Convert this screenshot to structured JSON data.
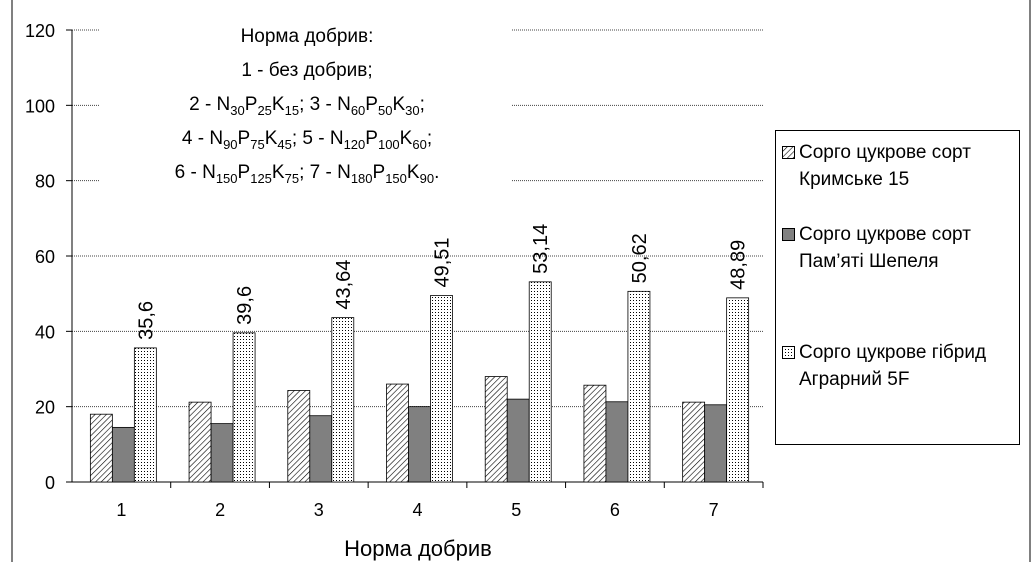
{
  "chart_data": {
    "type": "bar",
    "x_label": "Норма добрив",
    "annotation": [
      [
        "Норма добрив:"
      ],
      [
        "1 - без добрив;"
      ],
      [
        "2 - N",
        "30",
        "P",
        "25",
        "K",
        "15",
        ";   3 - N",
        "60",
        "P",
        "50",
        "K",
        "30",
        ";"
      ],
      [
        "4 - N",
        "90",
        "P",
        "75",
        "K",
        "45",
        ";   5 - N",
        "120",
        "P",
        "100",
        "K",
        "60",
        ";"
      ],
      [
        "6 - N",
        "150",
        "P",
        "125",
        "K",
        "75",
        ";   7 - N",
        "180",
        "P",
        "150",
        "K",
        "90",
        "."
      ]
    ],
    "categories": [
      "1",
      "2",
      "3",
      "4",
      "5",
      "6",
      "7"
    ],
    "series": [
      {
        "name": "Сорго цукрове сорт Кримське 15",
        "color": "#000000",
        "pattern": "hatch",
        "values": [
          18,
          21.2,
          24.3,
          26,
          28,
          25.7,
          21.2
        ]
      },
      {
        "name": "Сорго цукрове сорт Пам’яті Шепеля",
        "color": "#808080",
        "values": [
          14.5,
          15.5,
          17.6,
          20,
          22,
          21.3,
          20.5
        ]
      },
      {
        "name": "Сорго цукрове гібрид Аграрний 5F",
        "color": "#000000",
        "pattern": "dots",
        "values": [
          35.6,
          39.6,
          43.64,
          49.51,
          53.14,
          50.62,
          48.89
        ],
        "value_labels": [
          "35,6",
          "39,6",
          "43,64",
          "49,51",
          "53,14",
          "50,62",
          "48,89"
        ]
      }
    ],
    "ylim": [
      0,
      120
    ],
    "yticks": [
      0,
      20,
      40,
      60,
      80,
      100,
      120
    ],
    "grid": true
  }
}
